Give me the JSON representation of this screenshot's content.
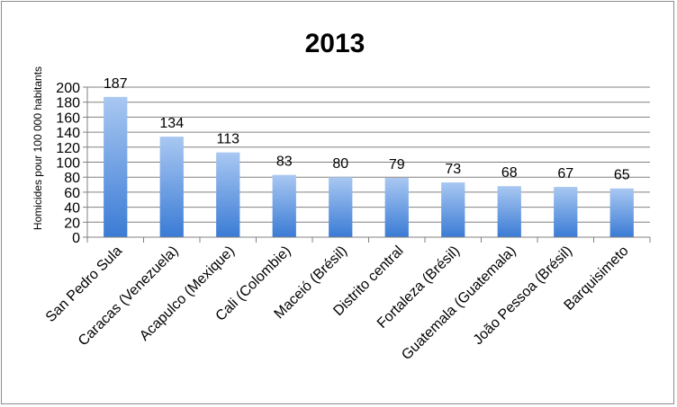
{
  "chart_data": {
    "type": "bar",
    "title": "2013",
    "ylabel": "Homicides pour 100 000 habitants",
    "xlabel": "",
    "ylim": [
      0,
      200
    ],
    "yticks": [
      0,
      20,
      40,
      60,
      80,
      100,
      120,
      140,
      160,
      180,
      200
    ],
    "grid": true,
    "categories": [
      "San Pedro Sula",
      "Caracas (Venezuela)",
      "Acapulco (Mexique)",
      "Cali (Colombie)",
      "Maceió (Brésil)",
      "Distrito central",
      "Fortaleza (Brésil)",
      "Guatemala (Guatemala)",
      "João Pessoa (Brésil)",
      "Barquisimeto"
    ],
    "values": [
      187,
      134,
      113,
      83,
      80,
      79,
      73,
      68,
      67,
      65
    ],
    "colors": {
      "bar_top": "#a9c8f2",
      "bar_bottom": "#3a7bd5",
      "grid": "#808080"
    }
  }
}
